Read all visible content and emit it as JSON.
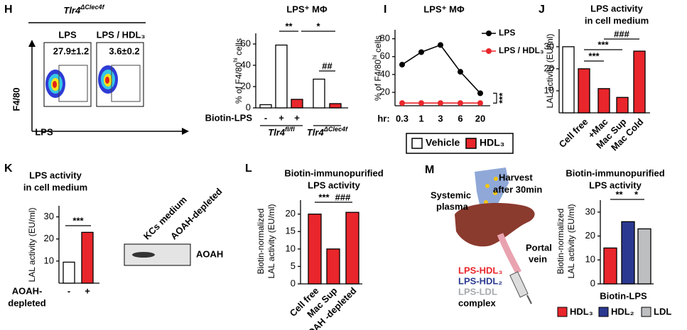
{
  "panel_labels": [
    "H",
    "I",
    "J",
    "K",
    "L",
    "M"
  ],
  "flow": {
    "title": {
      "text": "Tlr4",
      "sup": "ΔClec4f"
    },
    "columns": [
      "LPS",
      "LPS / HDL₃"
    ],
    "values": [
      "27.9±1.2",
      "3.6±0.2"
    ],
    "y_label": "F4/80",
    "x_label": "LPS"
  },
  "treatment_legend": [
    {
      "name": "Vehicle",
      "color": "#ffffff"
    },
    {
      "name": "HDL₃",
      "color": "#e8262b"
    }
  ],
  "blot": {
    "lanes": [
      "KCs medium",
      "AOAH-depleted"
    ],
    "band_label": "AOAH"
  },
  "diagram": {
    "harvest": [
      "Harvest",
      "after 30min"
    ],
    "plasma": [
      "Systemic",
      "plasma"
    ],
    "vein": [
      "Portal",
      "vein"
    ],
    "complexes": [
      {
        "text": "LPS-HDL₃",
        "color": "#e8262b"
      },
      {
        "text": "LPS-HDL₂",
        "color": "#2b3990"
      },
      {
        "text": "LPS-LDL",
        "color": "#a7a9ac"
      }
    ],
    "complex": "complex"
  },
  "chart_data": [
    {
      "type": "bar",
      "title": "LPS⁺ MΦ",
      "y_label": {
        "text": "% of F4/80",
        "sup": "hi",
        "after": " cells"
      },
      "row_label": "Biotin-LPS",
      "categories": [
        "-",
        "+",
        "+",
        null,
        null
      ],
      "values": [
        3,
        59,
        8,
        27,
        4
      ],
      "colors": [
        "#ffffff",
        "#ffffff",
        "#e8262b",
        "#ffffff",
        "#e8262b"
      ],
      "groups": [
        {
          "text": "Tlr4",
          "sup": "fl/fl"
        },
        {
          "text": "Tlr4",
          "sup": "ΔClec4f"
        }
      ],
      "ylim": [
        0,
        70
      ],
      "yticks": [
        0,
        20,
        40,
        60
      ],
      "annotations": [
        "**",
        "*",
        "##"
      ]
    },
    {
      "type": "line",
      "title": "LPS⁺ MΦ",
      "y_label": {
        "text": "% of F4/80",
        "sup": "hi",
        "after": " cells"
      },
      "x_label": "hr:",
      "categories": [
        "0.3",
        "1",
        "3",
        "6",
        "20"
      ],
      "series": [
        {
          "name": "LPS",
          "color": "#000000",
          "values": [
            51,
            65,
            73,
            43,
            19
          ]
        },
        {
          "name": "LPS / HDL₃",
          "color": "#e8262b",
          "values": [
            8,
            8,
            8,
            8,
            8
          ]
        }
      ],
      "ylim": [
        5,
        90
      ],
      "yticks": [
        20,
        40,
        60,
        80
      ],
      "annotations": [
        "***"
      ]
    },
    {
      "type": "bar",
      "title": [
        "LPS activity",
        "in cell medium"
      ],
      "y_label": "LAL activity (EU/ml)",
      "categories": [
        null,
        "Cell free",
        "+Mac",
        "Mac Sup",
        "Mac Cold"
      ],
      "values": [
        30,
        20,
        11,
        7,
        28
      ],
      "colors": [
        "#ffffff",
        "#e8262b",
        "#e8262b",
        "#e8262b",
        "#e8262b"
      ],
      "ylim": [
        0,
        38
      ],
      "yticks": [
        10,
        20,
        30
      ],
      "annotations": [
        "***",
        "***",
        "###"
      ]
    },
    {
      "type": "bar",
      "title": [
        "LPS activity",
        "in cell medium"
      ],
      "y_label": "LAL activity (EU/ml)",
      "x_label": [
        "AOAH-",
        "depleted"
      ],
      "categories": [
        "-",
        "+"
      ],
      "values": [
        9.5,
        23
      ],
      "colors": [
        "#ffffff",
        "#e8262b"
      ],
      "ylim": [
        0,
        35
      ],
      "yticks": [
        10,
        20,
        30
      ],
      "annotations": [
        "***"
      ]
    },
    {
      "type": "bar",
      "title": [
        "Biotin-immunopurified",
        "LPS activity"
      ],
      "y_label": [
        "Biotin-normalized",
        "LAL activity (EU/ml)"
      ],
      "categories": [
        "Cell free",
        "Mac Sup",
        "AOAH -depleted"
      ],
      "values": [
        20,
        10,
        20.5
      ],
      "colors": [
        "#e8262b",
        "#e8262b",
        "#e8262b"
      ],
      "ylim": [
        0,
        24
      ],
      "yticks": [
        0,
        5,
        10,
        15,
        20
      ],
      "annotations": [
        "***",
        "###"
      ]
    },
    {
      "type": "bar",
      "title": [
        "Biotin-immunopurified",
        "LPS activity"
      ],
      "y_label": [
        "Biotin-normalized",
        "LAL activity (EU/ml)"
      ],
      "x_label": "Biotin-LPS",
      "series": [
        {
          "name": "HDL₃",
          "color": "#e8262b",
          "values": [
            15
          ]
        },
        {
          "name": "HDL₂",
          "color": "#2b3990",
          "values": [
            26
          ]
        },
        {
          "name": "LDL",
          "color": "#bcbec0",
          "values": [
            23
          ]
        }
      ],
      "ylim": [
        0,
        35
      ],
      "yticks": [
        0,
        10,
        20,
        30
      ],
      "annotations": [
        "**",
        "*"
      ]
    }
  ]
}
